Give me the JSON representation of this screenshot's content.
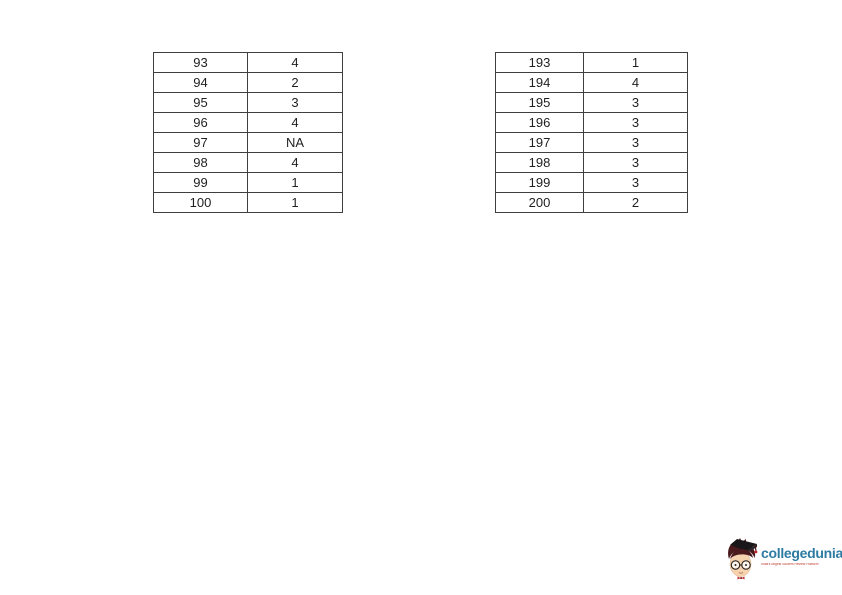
{
  "tables": {
    "left": {
      "rows": [
        [
          "93",
          "4"
        ],
        [
          "94",
          "2"
        ],
        [
          "95",
          "3"
        ],
        [
          "96",
          "4"
        ],
        [
          "97",
          "NA"
        ],
        [
          "98",
          "4"
        ],
        [
          "99",
          "1"
        ],
        [
          "100",
          "1"
        ]
      ]
    },
    "right": {
      "rows": [
        [
          "193",
          "1"
        ],
        [
          "194",
          "4"
        ],
        [
          "195",
          "3"
        ],
        [
          "196",
          "3"
        ],
        [
          "197",
          "3"
        ],
        [
          "198",
          "3"
        ],
        [
          "199",
          "3"
        ],
        [
          "200",
          "2"
        ]
      ]
    }
  },
  "logo": {
    "brand": "collegedunia",
    "tagline": "India's largest Student Review Platform"
  },
  "colors": {
    "page_background": "#ffffff",
    "table_border": "#3f3f3f",
    "table_text": "#1f1f1f",
    "brand_blue": "#2d7aa3",
    "tagline_red": "#c0392b",
    "mascot_hair": "#4a191c",
    "mascot_cap": "#1a171b",
    "mascot_skin": "#f6d2ae",
    "mascot_bow": "#c1272d"
  }
}
